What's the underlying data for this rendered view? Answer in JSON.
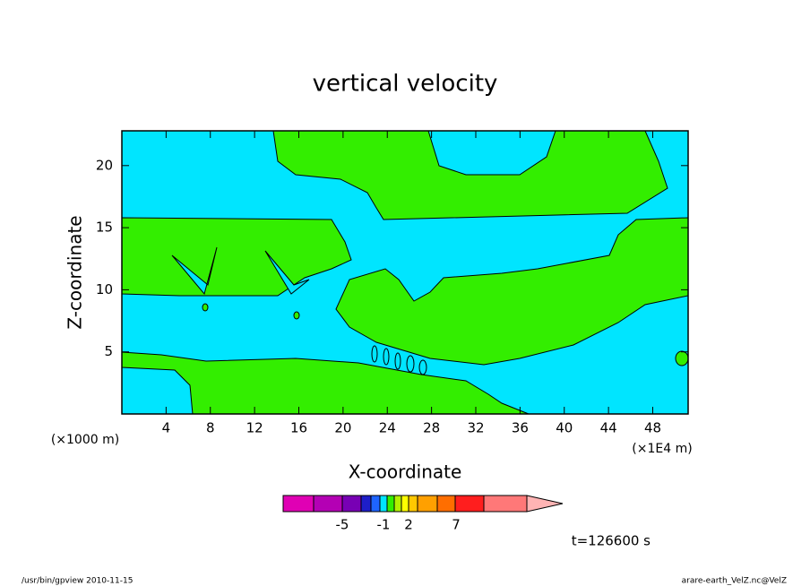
{
  "chart_data": {
    "type": "contour",
    "title": "vertical velocity",
    "x_label": "X-coordinate",
    "y_label": "Z-coordinate",
    "x_unit": "(×1E4 m)",
    "y_unit": "(×1000 m)",
    "xlim": [
      0,
      51.2
    ],
    "ylim": [
      0,
      22.8
    ],
    "xticks": [
      4,
      8,
      12,
      16,
      20,
      24,
      28,
      32,
      36,
      40,
      44,
      48
    ],
    "yticks": [
      5,
      10,
      15,
      20
    ],
    "colorbar_colors": [
      "#e000b4",
      "#b400b4",
      "#7800b4",
      "#1e1ec8",
      "#1e64ff",
      "#00e5ff",
      "#33ee00",
      "#b4f000",
      "#ffff00",
      "#ffc800",
      "#ffa000",
      "#ff6e00",
      "#ff1e1e",
      "#ff7878",
      "#ffb4b4"
    ],
    "colorbar_labels": [
      -5,
      -1,
      2,
      7
    ],
    "annotation": "t=126600 s",
    "footer_left": "/usr/bin/gpview   2010-11-15",
    "footer_right": "arare-earth_VelZ.nc@VelZ"
  }
}
